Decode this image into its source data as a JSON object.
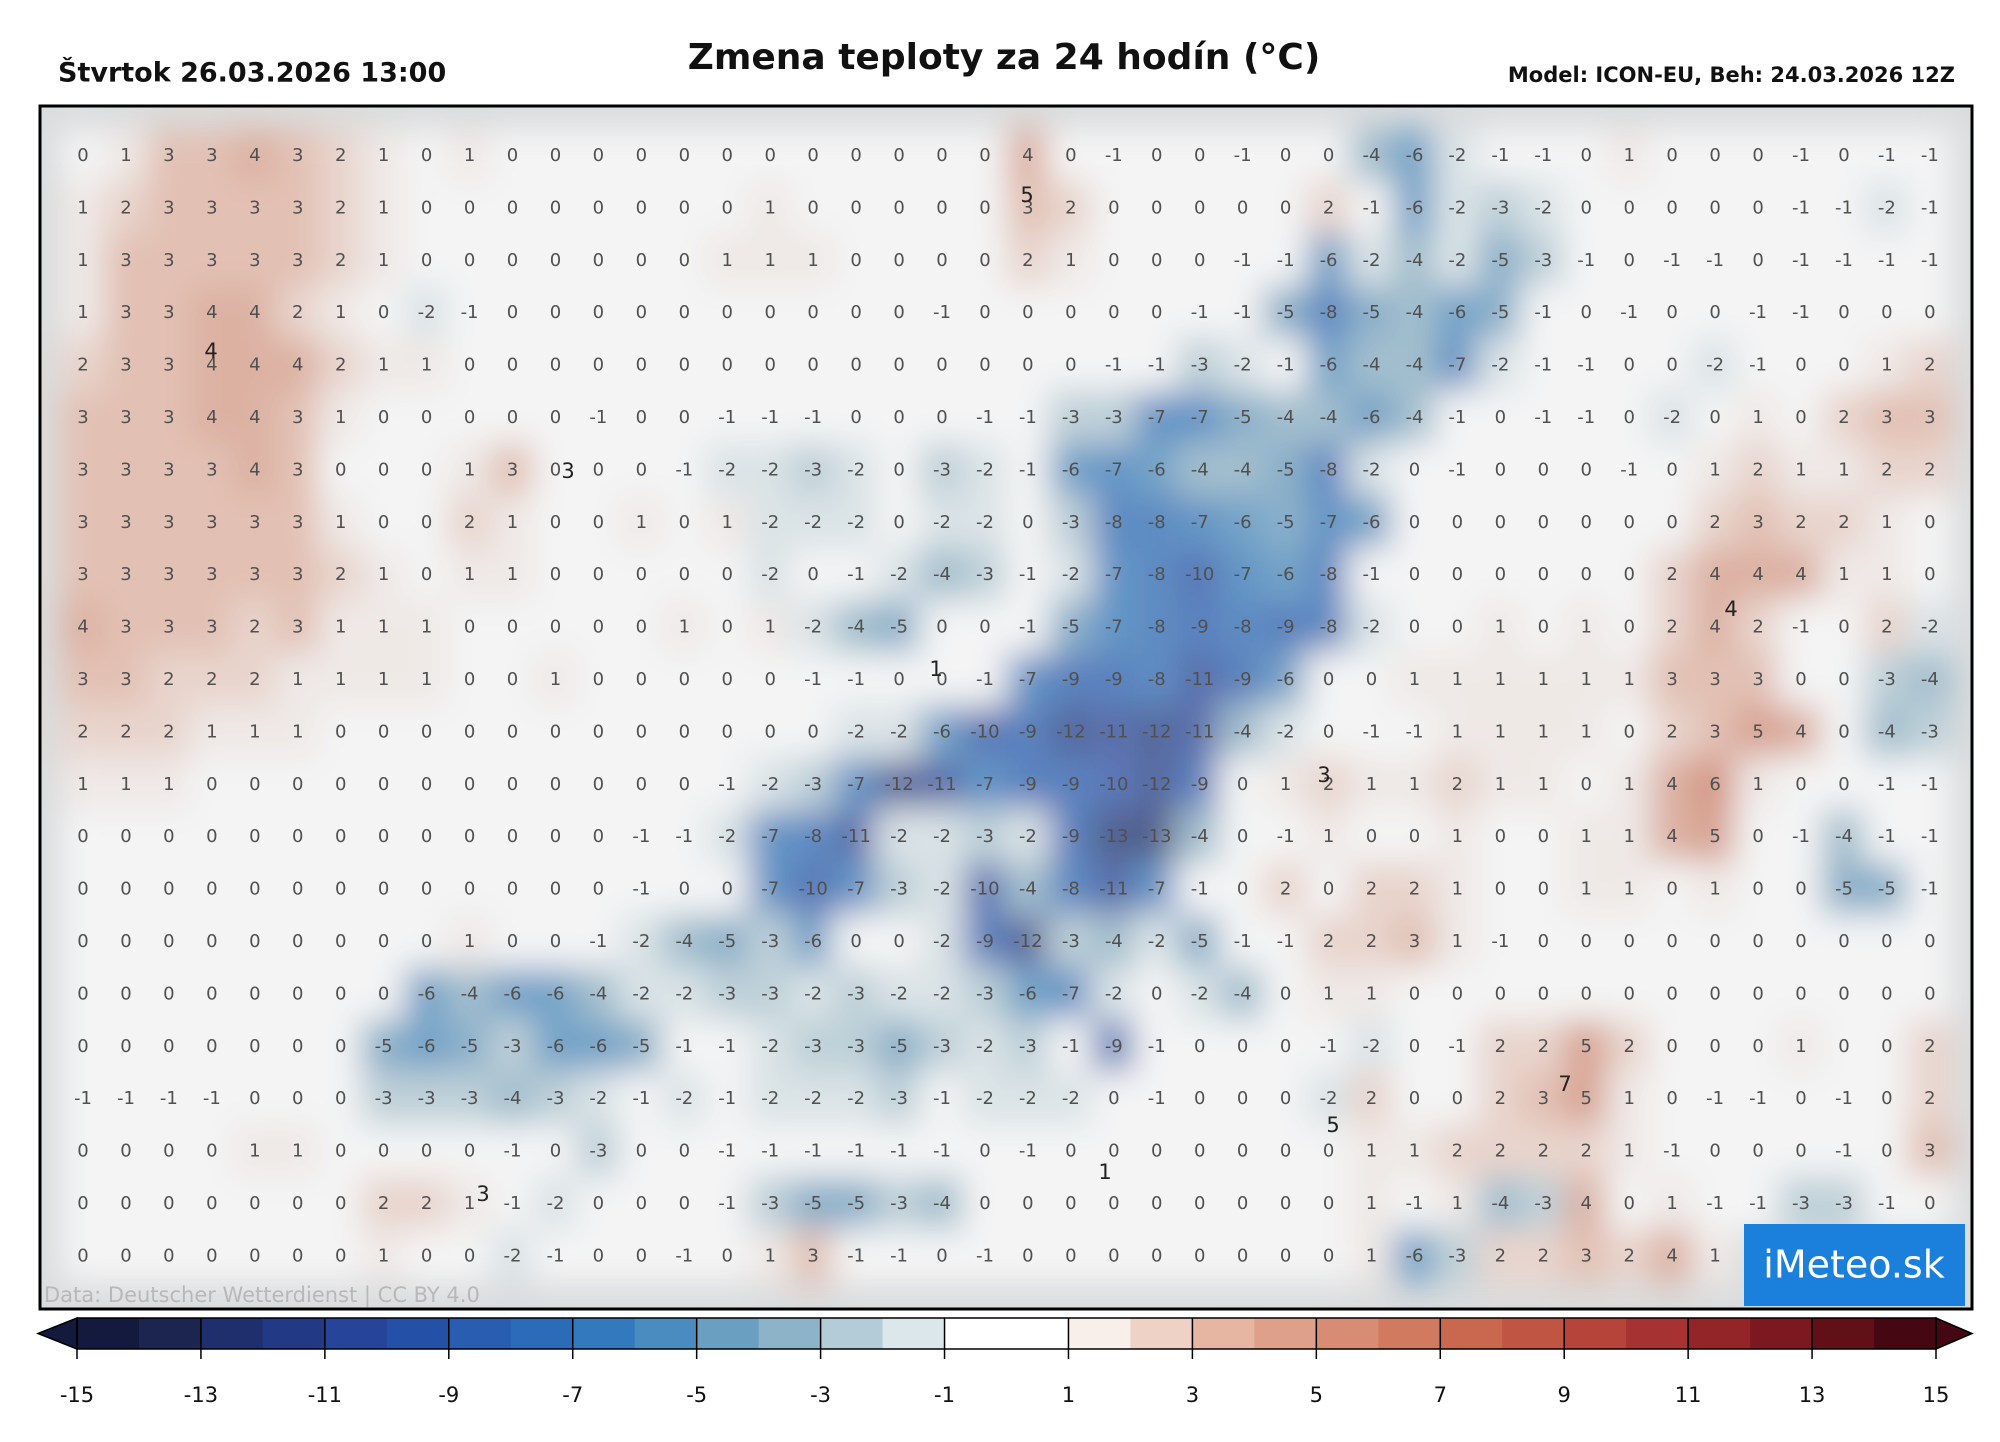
{
  "header": {
    "date": "Štvrtok 26.03.2026 13:00",
    "title": "Zmena teploty za 24 hodín (°C)",
    "model": "Model: ICON-EU, Beh: 24.03.2026 12Z"
  },
  "map": {
    "credit": "Data: Deutscher Wetterdienst | CC BY 4.0",
    "logo": "iMeteo.sk",
    "grid": [
      [
        0,
        1,
        3,
        3,
        4,
        3,
        2,
        1,
        0,
        1,
        0,
        0,
        0,
        0,
        0,
        0,
        0,
        0,
        0,
        0,
        0,
        0,
        4,
        0,
        -1,
        0,
        0,
        -1,
        0,
        0,
        -4,
        -6,
        -2,
        -1,
        -1,
        0,
        1,
        0,
        0,
        0,
        -1,
        0,
        -1,
        -1
      ],
      [
        1,
        2,
        3,
        3,
        3,
        3,
        2,
        1,
        0,
        0,
        0,
        0,
        0,
        0,
        0,
        0,
        1,
        0,
        0,
        0,
        0,
        0,
        3,
        2,
        0,
        0,
        0,
        0,
        0,
        2,
        -1,
        -6,
        -2,
        -3,
        -2,
        0,
        0,
        0,
        0,
        0,
        -1,
        -1,
        -2,
        -1
      ],
      [
        1,
        3,
        3,
        3,
        3,
        3,
        2,
        1,
        0,
        0,
        0,
        0,
        0,
        0,
        0,
        1,
        1,
        1,
        0,
        0,
        0,
        0,
        2,
        1,
        0,
        0,
        0,
        -1,
        -1,
        -6,
        -2,
        -4,
        -2,
        -5,
        -3,
        -1,
        0,
        -1,
        -1,
        0,
        -1,
        -1,
        -1,
        -1
      ],
      [
        1,
        3,
        3,
        4,
        4,
        2,
        1,
        0,
        -2,
        -1,
        0,
        0,
        0,
        0,
        0,
        0,
        0,
        0,
        0,
        0,
        -1,
        0,
        0,
        0,
        0,
        0,
        -1,
        -1,
        -5,
        -8,
        -5,
        -4,
        -6,
        -5,
        -1,
        0,
        -1,
        0,
        0,
        -1,
        -1,
        0,
        0,
        0
      ],
      [
        2,
        3,
        3,
        4,
        4,
        4,
        2,
        1,
        1,
        0,
        0,
        0,
        0,
        0,
        0,
        0,
        0,
        0,
        0,
        0,
        0,
        0,
        0,
        0,
        -1,
        -1,
        -3,
        -2,
        -1,
        -6,
        -4,
        -4,
        -7,
        -2,
        -1,
        -1,
        0,
        0,
        -2,
        -1,
        0,
        0,
        1,
        2
      ],
      [
        3,
        3,
        3,
        4,
        4,
        3,
        1,
        0,
        0,
        0,
        0,
        0,
        -1,
        0,
        0,
        -1,
        -1,
        -1,
        0,
        0,
        0,
        -1,
        -1,
        -3,
        -3,
        -7,
        -7,
        -5,
        -4,
        -4,
        -6,
        -4,
        -1,
        0,
        -1,
        -1,
        0,
        -2,
        0,
        1,
        0,
        2,
        3,
        3
      ],
      [
        3,
        3,
        3,
        3,
        4,
        3,
        0,
        0,
        0,
        1,
        3,
        0,
        0,
        0,
        -1,
        -2,
        -2,
        -3,
        -2,
        0,
        -3,
        -2,
        -1,
        -6,
        -7,
        -6,
        -4,
        -4,
        -5,
        -8,
        -2,
        0,
        -1,
        0,
        0,
        0,
        -1,
        0,
        1,
        2,
        1,
        1,
        2,
        2
      ],
      [
        3,
        3,
        3,
        3,
        3,
        3,
        1,
        0,
        0,
        2,
        1,
        0,
        0,
        1,
        0,
        1,
        -2,
        -2,
        -2,
        0,
        -2,
        -2,
        0,
        -3,
        -8,
        -8,
        -7,
        -6,
        -5,
        -7,
        -6,
        0,
        0,
        0,
        0,
        0,
        0,
        0,
        2,
        3,
        2,
        2,
        1,
        0
      ],
      [
        3,
        3,
        3,
        3,
        3,
        3,
        2,
        1,
        0,
        1,
        1,
        0,
        0,
        0,
        0,
        0,
        -2,
        0,
        -1,
        -2,
        -4,
        -3,
        -1,
        -2,
        -7,
        -8,
        -10,
        -7,
        -6,
        -8,
        -1,
        0,
        0,
        0,
        0,
        0,
        0,
        2,
        4,
        4,
        4,
        1,
        1,
        0
      ],
      [
        4,
        3,
        3,
        3,
        2,
        3,
        1,
        1,
        1,
        0,
        0,
        0,
        0,
        0,
        1,
        0,
        1,
        -2,
        -4,
        -5,
        0,
        0,
        -1,
        -5,
        -7,
        -8,
        -9,
        -8,
        -9,
        -8,
        -2,
        0,
        0,
        1,
        0,
        1,
        0,
        2,
        4,
        2,
        -1,
        0,
        2,
        -2
      ],
      [
        3,
        3,
        2,
        2,
        2,
        1,
        1,
        1,
        1,
        0,
        0,
        1,
        0,
        0,
        0,
        0,
        0,
        -1,
        -1,
        0,
        0,
        -1,
        -7,
        -9,
        -9,
        -8,
        -11,
        -9,
        -6,
        0,
        0,
        1,
        1,
        1,
        1,
        1,
        1,
        3,
        3,
        3,
        0,
        0,
        -3,
        -4
      ],
      [
        2,
        2,
        2,
        1,
        1,
        1,
        0,
        0,
        0,
        0,
        0,
        0,
        0,
        0,
        0,
        0,
        0,
        0,
        -2,
        -2,
        -6,
        -10,
        -9,
        -12,
        -11,
        -12,
        -11,
        -4,
        -2,
        0,
        -1,
        -1,
        1,
        1,
        1,
        1,
        0,
        2,
        3,
        5,
        4,
        0,
        -4,
        -3
      ],
      [
        1,
        1,
        1,
        0,
        0,
        0,
        0,
        0,
        0,
        0,
        0,
        0,
        0,
        0,
        0,
        -1,
        -2,
        -3,
        -7,
        -12,
        -11,
        -7,
        -9,
        -9,
        -10,
        -12,
        -9,
        0,
        1,
        2,
        1,
        1,
        2,
        1,
        1,
        0,
        1,
        4,
        6,
        1,
        0,
        0,
        -1,
        -1
      ],
      [
        0,
        0,
        0,
        0,
        0,
        0,
        0,
        0,
        0,
        0,
        0,
        0,
        0,
        -1,
        -1,
        -2,
        -7,
        -8,
        -11,
        -2,
        -2,
        -3,
        -2,
        -9,
        -13,
        -13,
        -4,
        0,
        -1,
        1,
        0,
        0,
        1,
        0,
        0,
        1,
        1,
        4,
        5,
        0,
        -1,
        -4,
        -1,
        -1
      ],
      [
        0,
        0,
        0,
        0,
        0,
        0,
        0,
        0,
        0,
        0,
        0,
        0,
        0,
        -1,
        0,
        0,
        -7,
        -10,
        -7,
        -3,
        -2,
        -10,
        -4,
        -8,
        -11,
        -7,
        -1,
        0,
        2,
        0,
        2,
        2,
        1,
        0,
        0,
        1,
        1,
        0,
        1,
        0,
        0,
        -5,
        -5,
        -1
      ],
      [
        0,
        0,
        0,
        0,
        0,
        0,
        0,
        0,
        0,
        1,
        0,
        0,
        -1,
        -2,
        -4,
        -5,
        -3,
        -6,
        0,
        0,
        -2,
        -9,
        -12,
        -3,
        -4,
        -2,
        -5,
        -1,
        -1,
        2,
        2,
        3,
        1,
        -1,
        0,
        0,
        0,
        0,
        0,
        0,
        0,
        0,
        0,
        0
      ],
      [
        0,
        0,
        0,
        0,
        0,
        0,
        0,
        0,
        -6,
        -4,
        -6,
        -6,
        -4,
        -2,
        -2,
        -3,
        -3,
        -2,
        -3,
        -2,
        -2,
        -3,
        -6,
        -7,
        -2,
        0,
        -2,
        -4,
        0,
        1,
        1,
        0,
        0,
        0,
        0,
        0,
        0,
        0,
        0,
        0,
        0,
        0,
        0,
        0
      ],
      [
        0,
        0,
        0,
        0,
        0,
        0,
        0,
        -5,
        -6,
        -5,
        -3,
        -6,
        -6,
        -5,
        -1,
        -1,
        -2,
        -3,
        -3,
        -5,
        -3,
        -2,
        -3,
        -1,
        -9,
        -1,
        0,
        0,
        0,
        -1,
        -2,
        0,
        -1,
        2,
        2,
        5,
        2,
        0,
        0,
        0,
        1,
        0,
        0,
        2
      ],
      [
        -1,
        -1,
        -1,
        -1,
        0,
        0,
        0,
        -3,
        -3,
        -3,
        -4,
        -3,
        -2,
        -1,
        -2,
        -1,
        -2,
        -2,
        -2,
        -3,
        -1,
        -2,
        -2,
        -2,
        0,
        -1,
        0,
        0,
        0,
        -2,
        2,
        0,
        0,
        2,
        3,
        5,
        1,
        0,
        -1,
        -1,
        0,
        -1,
        0,
        2
      ],
      [
        0,
        0,
        0,
        0,
        1,
        1,
        0,
        0,
        0,
        0,
        -1,
        0,
        -3,
        0,
        0,
        -1,
        -1,
        -1,
        -1,
        -1,
        -1,
        0,
        -1,
        0,
        0,
        0,
        0,
        0,
        0,
        0,
        1,
        1,
        2,
        2,
        2,
        2,
        1,
        -1,
        0,
        0,
        0,
        -1,
        0,
        3
      ],
      [
        0,
        0,
        0,
        0,
        0,
        0,
        0,
        2,
        2,
        1,
        -1,
        -2,
        0,
        0,
        0,
        -1,
        -3,
        -5,
        -5,
        -3,
        -4,
        0,
        0,
        0,
        0,
        0,
        0,
        0,
        0,
        0,
        1,
        -1,
        1,
        -4,
        -3,
        4,
        0,
        1,
        -1,
        -1,
        -3,
        -3,
        -1,
        0
      ],
      [
        0,
        0,
        0,
        0,
        0,
        0,
        0,
        1,
        0,
        0,
        -2,
        -1,
        0,
        0,
        -1,
        0,
        1,
        3,
        -1,
        -1,
        0,
        -1,
        0,
        0,
        0,
        0,
        0,
        0,
        0,
        0,
        1,
        -6,
        -3,
        2,
        2,
        3,
        2,
        4,
        1
      ]
    ],
    "contour_labels": [
      5,
      4,
      3,
      1,
      4,
      3,
      5,
      7,
      3,
      1
    ]
  },
  "colorbar": {
    "lim": [
      -15,
      15
    ],
    "ticks": [
      -15,
      -13,
      -11,
      -9,
      -7,
      -5,
      -3,
      -1,
      1,
      3,
      5,
      7,
      9,
      11,
      13,
      15
    ],
    "colors": [
      "#141a3d",
      "#1b2550",
      "#1f2f6e",
      "#223a86",
      "#25449a",
      "#2550a8",
      "#285db2",
      "#2c6bb8",
      "#3379bd",
      "#4a8cc0",
      "#6a9fc2",
      "#8cb3c8",
      "#b3ccd7",
      "#dbe7eb",
      "#ffffff",
      "#ffffff",
      "#f8efeb",
      "#efd2c6",
      "#e6b6a3",
      "#dea08a",
      "#d88c73",
      "#d27a5f",
      "#c9674f",
      "#c15543",
      "#b74439",
      "#a63232",
      "#932428",
      "#7c1920",
      "#621018",
      "#450812"
    ]
  }
}
